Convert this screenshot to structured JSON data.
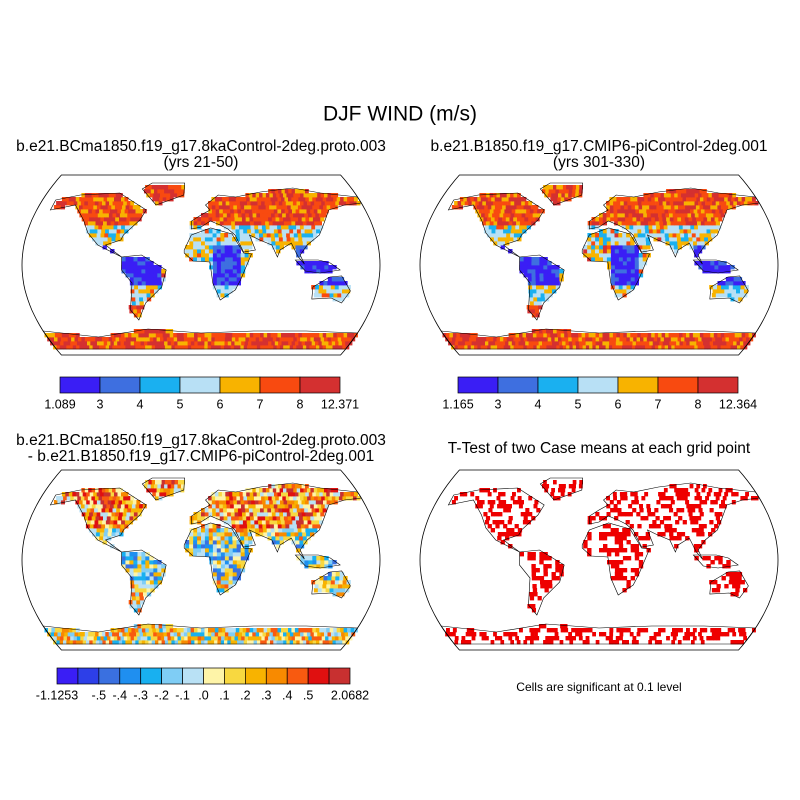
{
  "title": "DJF WIND (m/s)",
  "panels": [
    {
      "title_lines": [
        "b.e21.BCma1850.f19_g17.8kaControl-2deg.proto.003",
        "(yrs 21-50)"
      ],
      "colorbar": {
        "colors": [
          "#3a1ef5",
          "#3e6fe0",
          "#1ab0f0",
          "#b8e0f5",
          "#f8b300",
          "#f84a10",
          "#d43030"
        ],
        "labels": [
          "1.089",
          "3",
          "4",
          "5",
          "6",
          "7",
          "8",
          "12.371"
        ]
      }
    },
    {
      "title_lines": [
        "b.e21.B1850.f19_g17.CMIP6-piControl-2deg.001",
        "(yrs 301-330)"
      ],
      "colorbar": {
        "colors": [
          "#3a1ef5",
          "#3e6fe0",
          "#1ab0f0",
          "#b8e0f5",
          "#f8b300",
          "#f84a10",
          "#d43030"
        ],
        "labels": [
          "1.165",
          "3",
          "4",
          "5",
          "6",
          "7",
          "8",
          "12.364"
        ]
      }
    },
    {
      "title_lines": [
        "b.e21.BCma1850.f19_g17.8kaControl-2deg.proto.003",
        "- b.e21.B1850.f19_g17.CMIP6-piControl-2deg.001"
      ],
      "colorbar": {
        "colors": [
          "#3a1ef5",
          "#2d3fe8",
          "#3a70e0",
          "#1f8ff0",
          "#18b0f0",
          "#7fcdf5",
          "#b9e1f5",
          "#fef4a8",
          "#f8d840",
          "#f8b300",
          "#f88a00",
          "#f85a10",
          "#e01010",
          "#c83030"
        ],
        "labels": [
          "-1.1253",
          null,
          "-.5",
          "-.4",
          "-.3",
          "-.2",
          "-.1",
          ".0",
          ".1",
          ".2",
          ".3",
          ".4",
          ".5",
          null,
          "2.0682"
        ]
      }
    },
    {
      "title_lines": [
        "T-Test of two Case means at each grid point"
      ],
      "note": "Cells are significant at 0.1 level",
      "significant_color": "#ee0000"
    }
  ]
}
